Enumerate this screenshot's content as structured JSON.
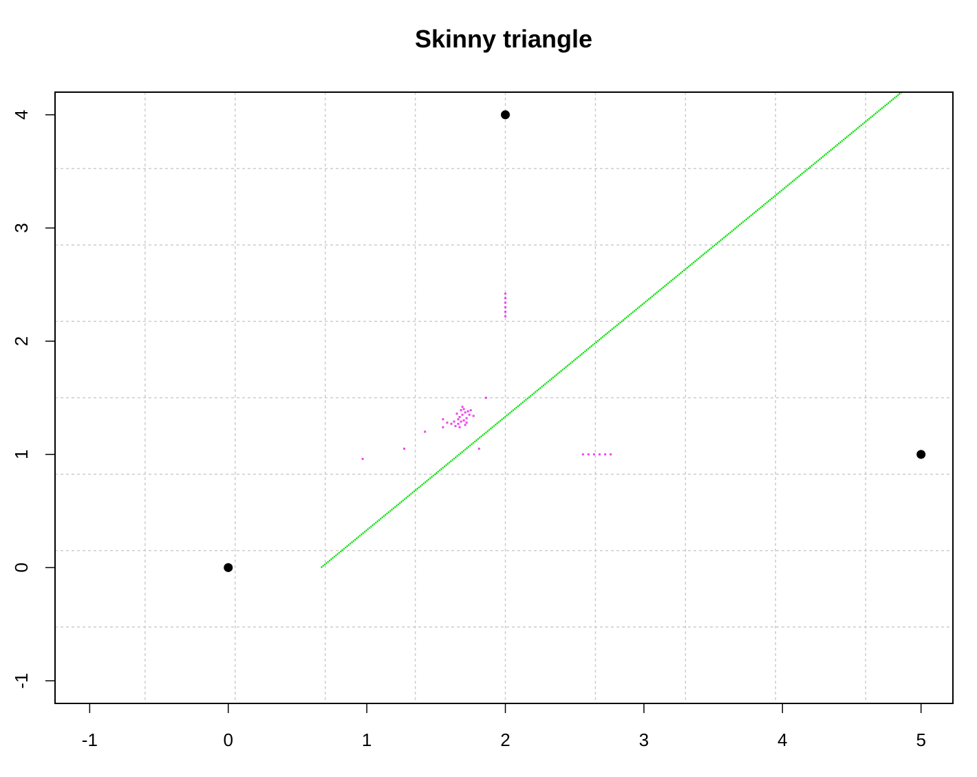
{
  "chart_data": {
    "type": "scatter",
    "title": "Skinny triangle",
    "xlabel": "",
    "ylabel": "",
    "xlim": [
      -1.25,
      5.23
    ],
    "ylim": [
      -1.2,
      4.2
    ],
    "x_ticks": [
      -1,
      0,
      1,
      2,
      3,
      4,
      5
    ],
    "x_tick_labels": [
      "-1",
      "0",
      "1",
      "2",
      "3",
      "4",
      "5"
    ],
    "y_ticks": [
      -1,
      0,
      1,
      2,
      3,
      4
    ],
    "y_tick_labels": [
      "-1",
      "0",
      "1",
      "2",
      "3",
      "4"
    ],
    "grid": true,
    "grid_x": [
      -0.6,
      0.05,
      0.7,
      1.35,
      2.0,
      2.65,
      3.3,
      3.95,
      4.6
    ],
    "grid_y": [
      -0.525,
      0.15,
      0.825,
      1.5,
      2.175,
      2.85,
      3.525,
      4.2
    ],
    "colors": {
      "vertices": "#000000",
      "line": "#00dd00",
      "points": "#ee44ee",
      "grid": "#cccccc"
    },
    "series": [
      {
        "type": "points",
        "points": [
          [
            0,
            0
          ],
          [
            5,
            1
          ],
          [
            2,
            4
          ]
        ]
      },
      {
        "type": "line",
        "from": [
          0.67,
          0
        ],
        "to": [
          4.86,
          4.2
        ]
      },
      {
        "type": "scatter",
        "points": [
          [
            1.64,
            1.25
          ],
          [
            1.66,
            1.27
          ],
          [
            1.68,
            1.29
          ],
          [
            1.7,
            1.3
          ],
          [
            1.72,
            1.32
          ],
          [
            1.67,
            1.33
          ],
          [
            1.69,
            1.35
          ],
          [
            1.71,
            1.37
          ],
          [
            1.73,
            1.38
          ],
          [
            1.65,
            1.36
          ],
          [
            1.68,
            1.39
          ],
          [
            1.7,
            1.4
          ],
          [
            1.66,
            1.31
          ],
          [
            1.72,
            1.28
          ],
          [
            1.74,
            1.35
          ],
          [
            1.69,
            1.42
          ],
          [
            1.63,
            1.29
          ],
          [
            1.75,
            1.39
          ],
          [
            1.71,
            1.26
          ],
          [
            1.67,
            1.24
          ],
          [
            1.61,
            1.27
          ],
          [
            1.58,
            1.28
          ],
          [
            1.55,
            1.31
          ],
          [
            1.55,
            1.24
          ],
          [
            1.77,
            1.34
          ],
          [
            1.86,
            1.5
          ],
          [
            1.42,
            1.2
          ],
          [
            1.27,
            1.05
          ],
          [
            1.81,
            1.05
          ],
          [
            0.97,
            0.96
          ],
          [
            2.0,
            2.22
          ],
          [
            2.0,
            2.26
          ],
          [
            2.0,
            2.3
          ],
          [
            2.0,
            2.34
          ],
          [
            2.0,
            2.38
          ],
          [
            2.0,
            2.42
          ],
          [
            2.56,
            1.0
          ],
          [
            2.6,
            1.0
          ],
          [
            2.64,
            1.0
          ],
          [
            2.68,
            1.0
          ],
          [
            2.72,
            1.0
          ],
          [
            2.76,
            1.0
          ]
        ]
      }
    ]
  }
}
